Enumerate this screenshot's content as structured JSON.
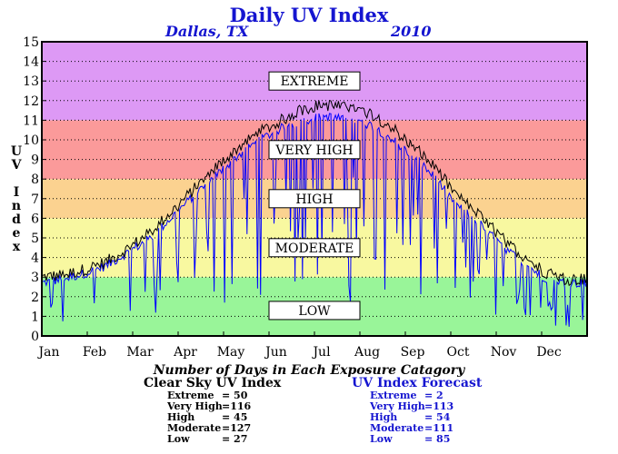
{
  "title": "Daily UV Index",
  "location": "Dallas, TX",
  "year": "2010",
  "chart_data": {
    "type": "line",
    "ylabel": "UV Index",
    "ylim": [
      0,
      15
    ],
    "yticks": [
      "0",
      "1",
      "2",
      "3",
      "4",
      "5",
      "6",
      "7",
      "8",
      "9",
      "10",
      "11",
      "12",
      "13",
      "14",
      "15"
    ],
    "xticks": [
      "Jan",
      "Feb",
      "Mar",
      "Apr",
      "May",
      "Jun",
      "Jul",
      "Aug",
      "Sep",
      "Oct",
      "Nov",
      "Dec"
    ],
    "grid": true,
    "bands": [
      {
        "name": "LOW",
        "range": [
          0,
          3
        ],
        "color": "#99f599"
      },
      {
        "name": "MODERATE",
        "range": [
          3,
          6
        ],
        "color": "#f8f8a0"
      },
      {
        "name": "HIGH",
        "range": [
          6,
          8
        ],
        "color": "#fbd290"
      },
      {
        "name": "VERY HIGH",
        "range": [
          8,
          11
        ],
        "color": "#fb9a9a"
      },
      {
        "name": "EXTREME",
        "range": [
          11,
          15
        ],
        "color": "#dd99f5"
      }
    ],
    "band_label_values": {
      "EXTREME": 13,
      "VERY HIGH": 9.5,
      "HIGH": 7,
      "MODERATE": 4.5,
      "LOW": 1.3
    },
    "series": [
      {
        "key": "clear",
        "color": "#000000",
        "values": [
          3.0,
          3.1,
          3.4,
          3.8,
          4.5,
          5.3,
          6.4,
          7.5,
          8.6,
          9.6,
          10.4,
          11.0,
          11.6,
          11.8,
          11.6,
          11.4,
          10.7,
          9.7,
          8.6,
          7.2,
          6.2,
          5.1,
          4.1,
          3.3,
          2.9,
          2.9
        ]
      },
      {
        "key": "forecast",
        "color": "#0000ff",
        "values": [
          2.7,
          2.9,
          3.2,
          3.6,
          4.3,
          5.0,
          6.1,
          7.2,
          8.2,
          9.2,
          10.0,
          10.6,
          11.0,
          11.2,
          11.0,
          10.8,
          10.1,
          9.2,
          8.1,
          6.7,
          5.8,
          4.7,
          3.8,
          3.0,
          2.7,
          2.7
        ]
      }
    ],
    "days_caption": "Number of Days in Each Exposure Catagory",
    "clear_sky": {
      "title": "Clear Sky UV Index",
      "rows": [
        {
          "label": "Extreme",
          "value": "= 50"
        },
        {
          "label": "Very High",
          "value": "=116"
        },
        {
          "label": "High",
          "value": "= 45"
        },
        {
          "label": "Moderate",
          "value": "=127"
        },
        {
          "label": "Low",
          "value": "= 27"
        }
      ]
    },
    "forecast": {
      "title": "UV Index Forecast",
      "rows": [
        {
          "label": "Extreme",
          "value": "= 2"
        },
        {
          "label": "Very High",
          "value": "=113"
        },
        {
          "label": "High",
          "value": "= 54"
        },
        {
          "label": "Moderate",
          "value": "=111"
        },
        {
          "label": "Low",
          "value": "= 85"
        }
      ]
    }
  }
}
